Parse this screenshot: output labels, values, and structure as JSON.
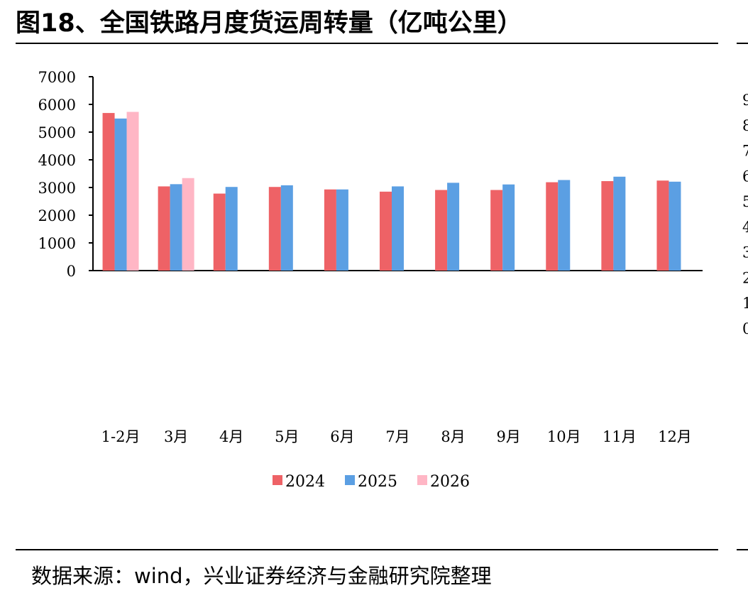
{
  "header": {
    "title": "图18、全国铁路月度货运周转量（亿吨公里）"
  },
  "footer": {
    "source": "数据来源：wind，兴业证券经济与金融研究院整理"
  },
  "adjacent_chart_fragment": {
    "visible_digits": [
      "9",
      "8",
      "7",
      "6",
      "5",
      "4",
      "3",
      "2",
      "1",
      "0"
    ]
  },
  "chart_data": {
    "type": "bar",
    "title": "",
    "xlabel": "",
    "ylabel": "",
    "ylim": [
      0,
      7000
    ],
    "yticks": [
      0,
      1000,
      2000,
      3000,
      4000,
      5000,
      6000,
      7000
    ],
    "grid": false,
    "legend_position": "bottom",
    "categories": [
      "1-2月",
      "3月",
      "4月",
      "5月",
      "6月",
      "7月",
      "8月",
      "9月",
      "10月",
      "11月",
      "12月"
    ],
    "series": [
      {
        "name": "2024",
        "color": "#EE6266",
        "values": [
          5690,
          3040,
          2780,
          3020,
          2930,
          2850,
          2910,
          2910,
          3190,
          3230,
          3250
        ]
      },
      {
        "name": "2025",
        "color": "#5B9FE3",
        "values": [
          5490,
          3120,
          3020,
          3080,
          2930,
          3040,
          3170,
          3110,
          3270,
          3390,
          3210
        ]
      },
      {
        "name": "2026",
        "color": "#FFB6C5",
        "values": [
          5730,
          3340,
          null,
          null,
          null,
          null,
          null,
          null,
          null,
          null,
          null
        ]
      }
    ]
  }
}
